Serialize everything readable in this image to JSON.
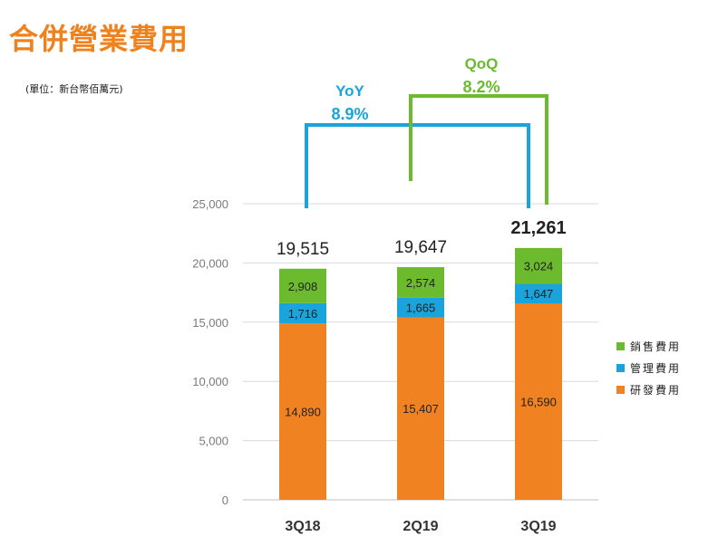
{
  "title": "合併營業費用",
  "unit_note": "(單位：新台幣佰萬元)",
  "colors": {
    "sales": "#6cbb2e",
    "admin": "#1ba3dc",
    "rnd": "#f08221",
    "yoy": "#1ba3dc",
    "qoq": "#6cbb2e",
    "axis": "#bfbfbf",
    "grid": "#d9d9d9"
  },
  "comparisons": {
    "yoy": {
      "name": "YoY",
      "value": "8.9%"
    },
    "qoq": {
      "name": "QoQ",
      "value": "8.2%"
    }
  },
  "chart_data": {
    "type": "bar",
    "stacked": true,
    "categories": [
      "3Q18",
      "2Q19",
      "3Q19"
    ],
    "series": [
      {
        "name": "研發費用",
        "values": [
          14890,
          15407,
          16590
        ]
      },
      {
        "name": "管理費用",
        "values": [
          1716,
          1665,
          1647
        ]
      },
      {
        "name": "銷售費用",
        "values": [
          2908,
          2574,
          3024
        ]
      }
    ],
    "totals": [
      19515,
      19647,
      21261
    ],
    "ylim": [
      0,
      25000
    ],
    "yticks": [
      0,
      5000,
      10000,
      15000,
      20000,
      25000
    ],
    "grid": true,
    "legend_position": "right"
  }
}
